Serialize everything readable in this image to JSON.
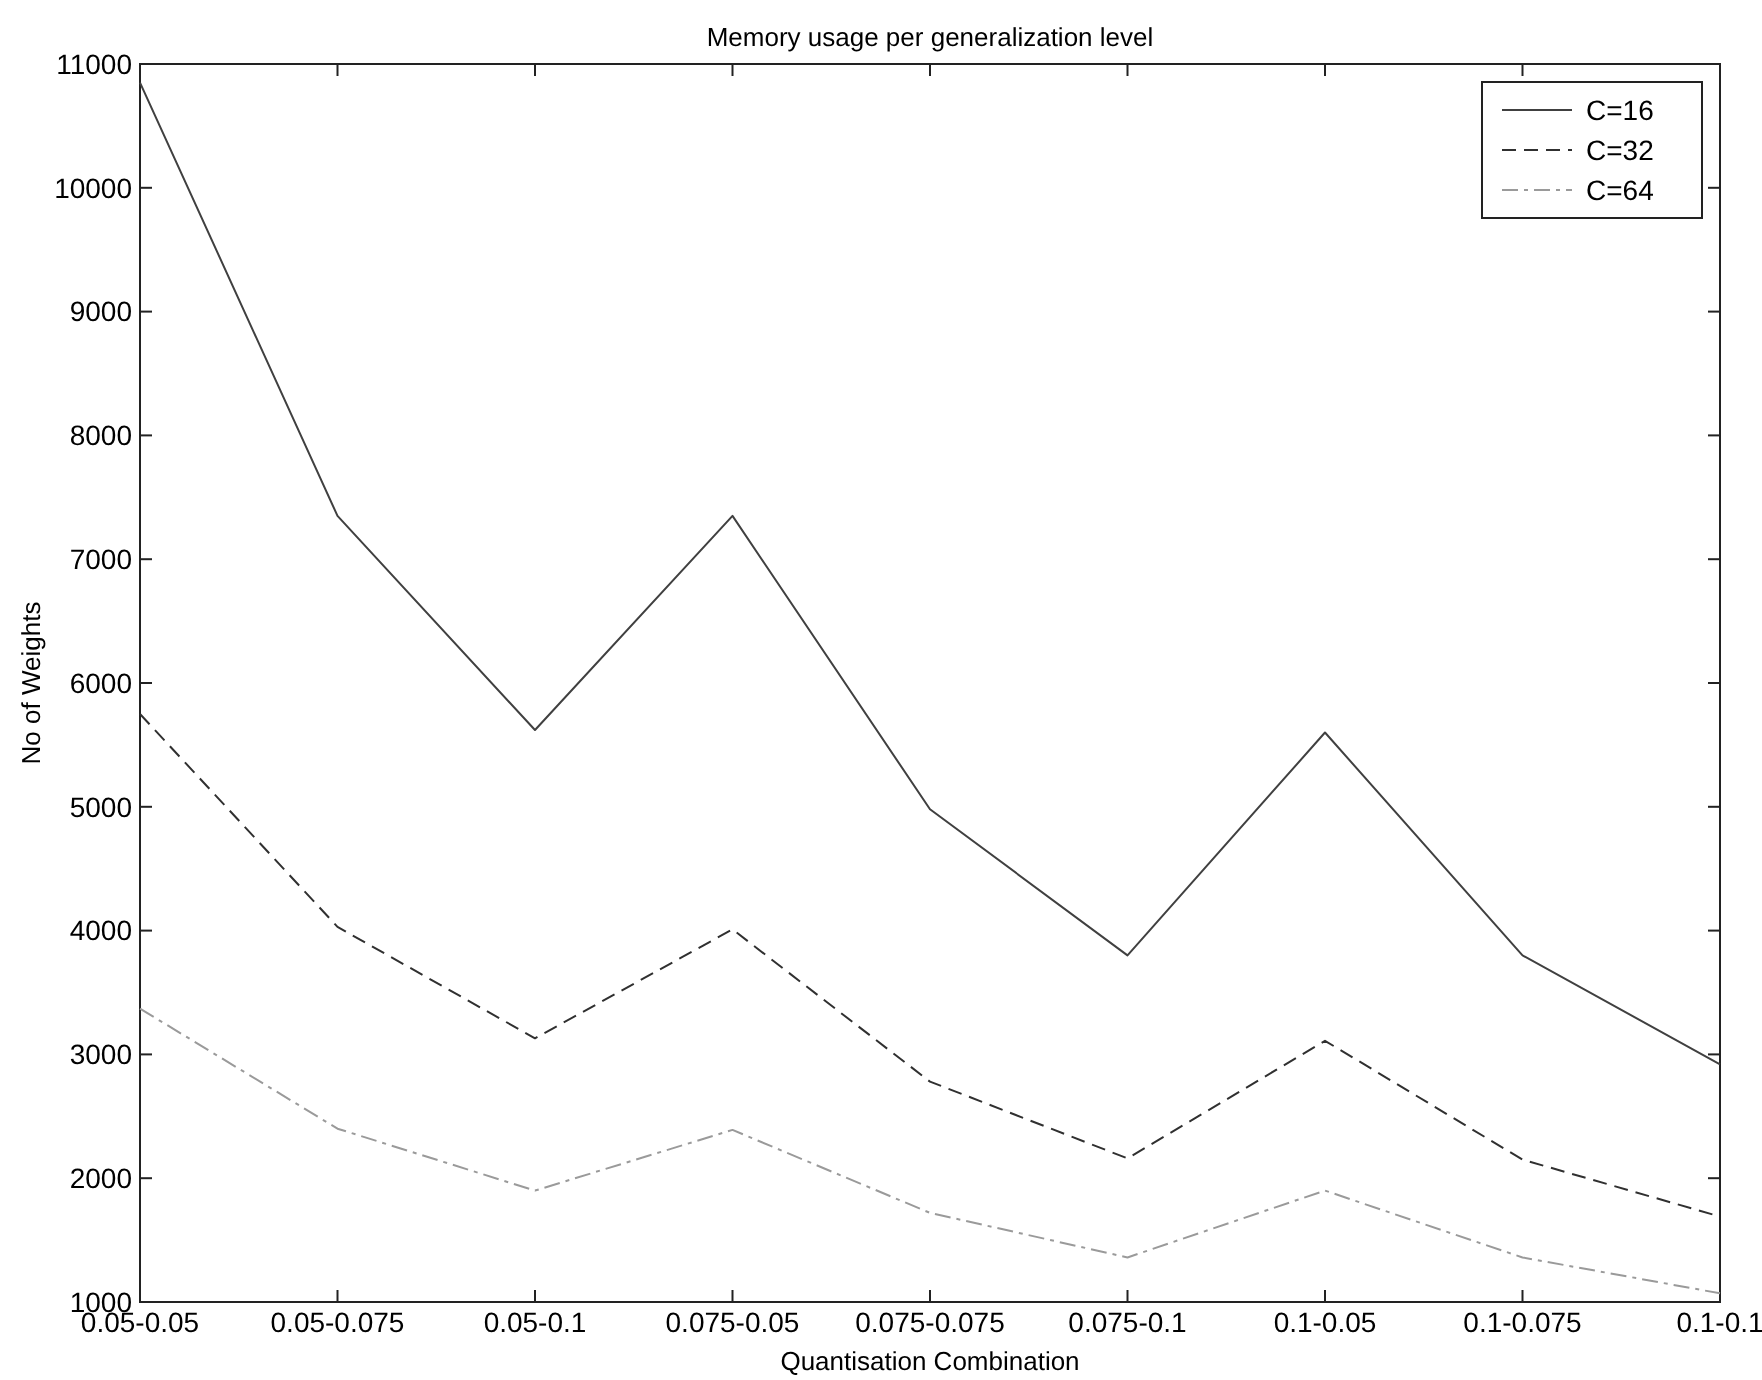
{
  "chart_data": {
    "type": "line",
    "title": "Memory usage per generalization level",
    "xlabel": "Quantisation Combination",
    "ylabel": "No of Weights",
    "categories": [
      "0.05-0.05",
      "0.05-0.075",
      "0.05-0.1",
      "0.075-0.05",
      "0.075-0.075",
      "0.075-0.1",
      "0.1-0.05",
      "0.1-0.075",
      "0.1-0.1"
    ],
    "series": [
      {
        "name": "C=16",
        "color": "#404040",
        "line_style": "solid",
        "values": [
          10850,
          7350,
          5620,
          7350,
          4980,
          3800,
          5600,
          3800,
          2920
        ]
      },
      {
        "name": "C=32",
        "color": "#303030",
        "line_style": "dashed",
        "values": [
          5750,
          4030,
          3130,
          4010,
          2780,
          2160,
          3110,
          2150,
          1690
        ]
      },
      {
        "name": "C=64",
        "color": "#9a9a9a",
        "line_style": "dashdot",
        "values": [
          3370,
          2400,
          1900,
          2390,
          1720,
          1360,
          1900,
          1360,
          1070
        ]
      }
    ],
    "ylim": [
      1000,
      11000
    ],
    "yticks": [
      1000,
      2000,
      3000,
      4000,
      5000,
      6000,
      7000,
      8000,
      9000,
      10000,
      11000
    ],
    "grid": false,
    "legend": "top right",
    "marker": "none"
  }
}
